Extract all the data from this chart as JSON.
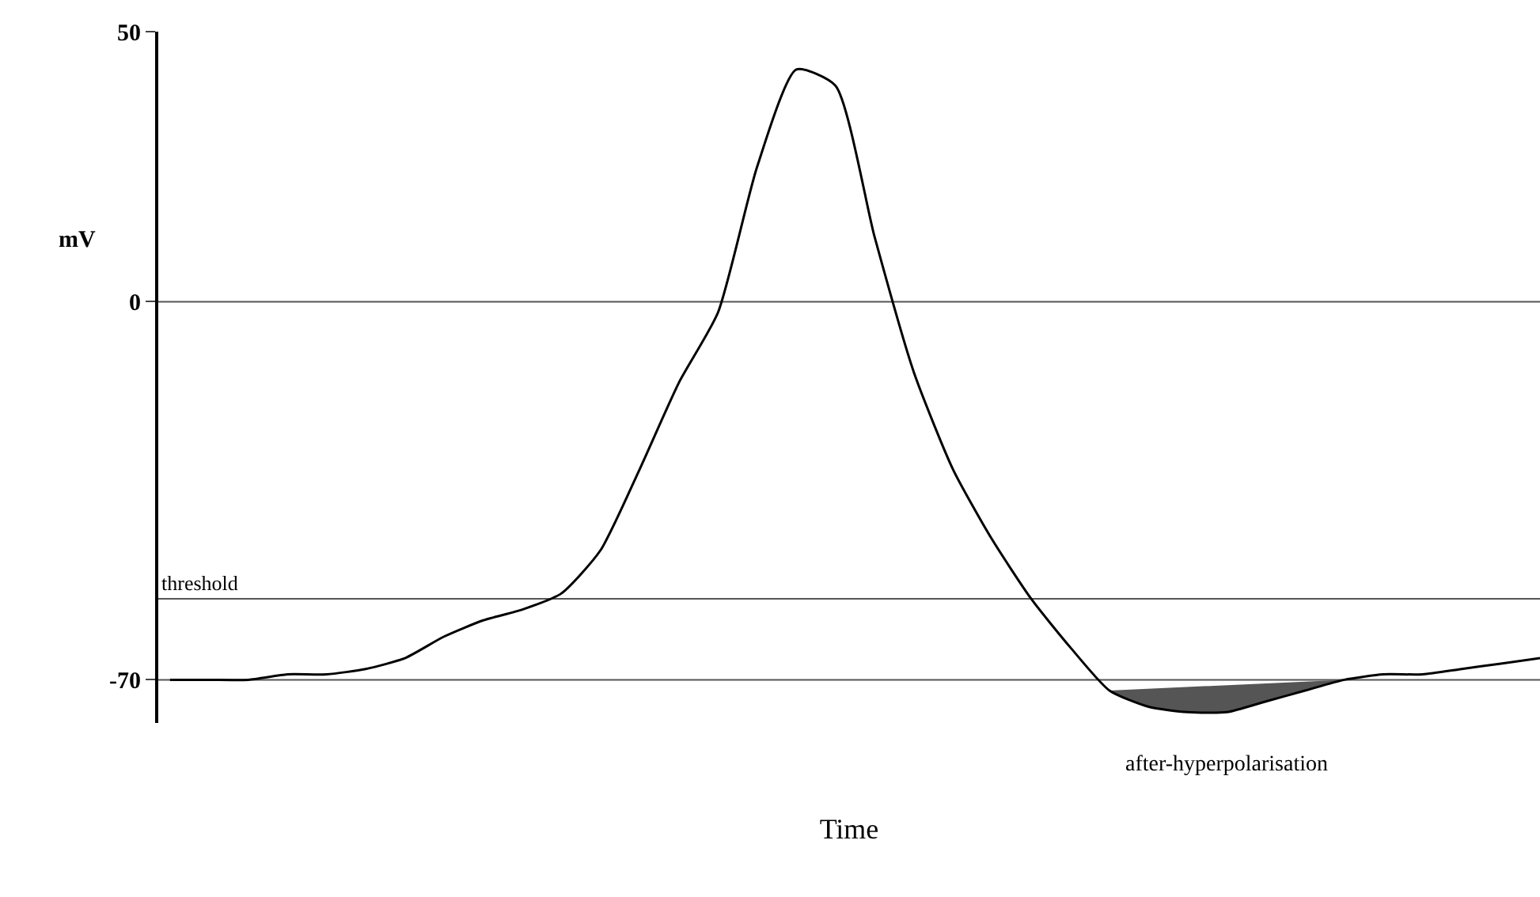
{
  "chart_data": {
    "type": "line",
    "xlabel": "Time",
    "ylabel": "mV",
    "categories": [
      null,
      null,
      null,
      null,
      null,
      null,
      null,
      null,
      null,
      null,
      null,
      null,
      null,
      null,
      null,
      null,
      null,
      null,
      null,
      null,
      null,
      null,
      null,
      null,
      null,
      null,
      null,
      null,
      null,
      null,
      null,
      null,
      null,
      null,
      null,
      null
    ],
    "series": [
      {
        "color": "#000000",
        "values": [
          -70,
          -70,
          -70,
          -69,
          -69,
          -68,
          -66,
          -62,
          -59,
          -57,
          -54,
          -46,
          -31,
          -15,
          -2,
          25,
          43,
          40,
          12,
          -13,
          -31,
          -44,
          -55,
          -64,
          -72,
          -75,
          -76,
          -76,
          -74,
          -72,
          -70,
          -69,
          -69,
          -68,
          -67,
          -66
        ]
      },
      {
        "type": "area",
        "color": "#555555",
        "values": [
          null,
          null,
          null,
          null,
          null,
          null,
          null,
          null,
          null,
          null,
          null,
          null,
          null,
          null,
          null,
          null,
          null,
          null,
          null,
          null,
          null,
          null,
          null,
          null,
          -72,
          -75,
          -76,
          -76,
          -74,
          -72,
          -70,
          null,
          null,
          null,
          null,
          null
        ]
      }
    ],
    "ylim": [
      -78,
      50
    ],
    "yticks": [
      50,
      0,
      -70
    ],
    "grid": false,
    "legend": false,
    "marker": "none",
    "line_style": "solid",
    "ref_lines": [
      {
        "axis": "y",
        "value": 0,
        "label": null
      },
      {
        "axis": "y",
        "value": -55,
        "label": "threshold"
      },
      {
        "axis": "y",
        "value": -70,
        "label": null
      }
    ],
    "annotations": [
      "after-hyperpolarisation"
    ]
  }
}
